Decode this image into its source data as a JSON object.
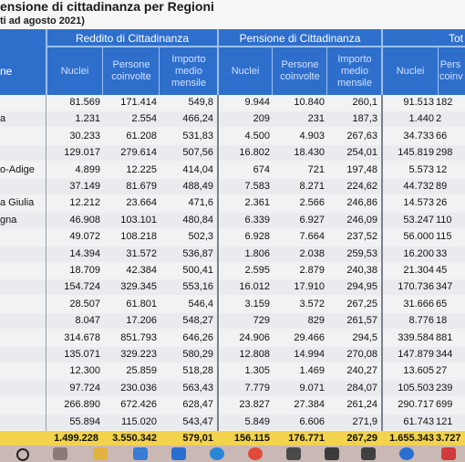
{
  "title": "ensione di cittadinanza per Regioni",
  "subtitle": "ti ad agosto 2021)",
  "row_header": "ne",
  "groups": {
    "reddito": "Reddito di Cittadinanza",
    "pensione": "Pensione di Cittadinanza",
    "totale": "Tot"
  },
  "subheaders": {
    "nuclei": "Nuclei",
    "persone": "Persone coinvolte",
    "importo": "Importo medio mensile",
    "persone_cut": "Pers coinv"
  },
  "rows": [
    {
      "label": "",
      "r": [
        "81.569",
        "171.414",
        "549,8"
      ],
      "p": [
        "9.944",
        "10.840",
        "260,1"
      ],
      "t": [
        "91.513",
        "182"
      ]
    },
    {
      "label": "a",
      "r": [
        "1.231",
        "2.554",
        "466,24"
      ],
      "p": [
        "209",
        "231",
        "187,3"
      ],
      "t": [
        "1.440",
        "2"
      ]
    },
    {
      "label": "",
      "r": [
        "30.233",
        "61.208",
        "531,83"
      ],
      "p": [
        "4.500",
        "4.903",
        "267,63"
      ],
      "t": [
        "34.733",
        "66"
      ]
    },
    {
      "label": "",
      "r": [
        "129.017",
        "279.614",
        "507,56"
      ],
      "p": [
        "16.802",
        "18.430",
        "254,01"
      ],
      "t": [
        "145.819",
        "298"
      ]
    },
    {
      "label": "o-Adige",
      "r": [
        "4.899",
        "12.225",
        "414,04"
      ],
      "p": [
        "674",
        "721",
        "197,48"
      ],
      "t": [
        "5.573",
        "12"
      ]
    },
    {
      "label": "",
      "r": [
        "37.149",
        "81.679",
        "488,49"
      ],
      "p": [
        "7.583",
        "8.271",
        "224,62"
      ],
      "t": [
        "44.732",
        "89"
      ]
    },
    {
      "label": "a Giulia",
      "r": [
        "12.212",
        "23.664",
        "471,6"
      ],
      "p": [
        "2.361",
        "2.566",
        "246,86"
      ],
      "t": [
        "14.573",
        "26"
      ]
    },
    {
      "label": "gna",
      "r": [
        "46.908",
        "103.101",
        "480,84"
      ],
      "p": [
        "6.339",
        "6.927",
        "246,09"
      ],
      "t": [
        "53.247",
        "110"
      ]
    },
    {
      "label": "",
      "r": [
        "49.072",
        "108.218",
        "502,3"
      ],
      "p": [
        "6.928",
        "7.664",
        "237,52"
      ],
      "t": [
        "56.000",
        "115"
      ]
    },
    {
      "label": "",
      "r": [
        "14.394",
        "31.572",
        "536,87"
      ],
      "p": [
        "1.806",
        "2.038",
        "259,53"
      ],
      "t": [
        "16.200",
        "33"
      ]
    },
    {
      "label": "",
      "r": [
        "18.709",
        "42.384",
        "500,41"
      ],
      "p": [
        "2.595",
        "2.879",
        "240,38"
      ],
      "t": [
        "21.304",
        "45"
      ]
    },
    {
      "label": "",
      "r": [
        "154.724",
        "329.345",
        "553,16"
      ],
      "p": [
        "16.012",
        "17.910",
        "294,95"
      ],
      "t": [
        "170.736",
        "347"
      ]
    },
    {
      "label": "",
      "r": [
        "28.507",
        "61.801",
        "546,4"
      ],
      "p": [
        "3.159",
        "3.572",
        "267,25"
      ],
      "t": [
        "31.666",
        "65"
      ]
    },
    {
      "label": "",
      "r": [
        "8.047",
        "17.206",
        "548,27"
      ],
      "p": [
        "729",
        "829",
        "261,57"
      ],
      "t": [
        "8.776",
        "18"
      ]
    },
    {
      "label": "",
      "r": [
        "314.678",
        "851.793",
        "646,26"
      ],
      "p": [
        "24.906",
        "29.466",
        "294,5"
      ],
      "t": [
        "339.584",
        "881"
      ]
    },
    {
      "label": "",
      "r": [
        "135.071",
        "329.223",
        "580,29"
      ],
      "p": [
        "12.808",
        "14.994",
        "270,08"
      ],
      "t": [
        "147.879",
        "344"
      ]
    },
    {
      "label": "",
      "r": [
        "12.300",
        "25.859",
        "518,28"
      ],
      "p": [
        "1.305",
        "1.469",
        "240,27"
      ],
      "t": [
        "13.605",
        "27"
      ]
    },
    {
      "label": "",
      "r": [
        "97.724",
        "230.036",
        "563,43"
      ],
      "p": [
        "7.779",
        "9.071",
        "284,07"
      ],
      "t": [
        "105.503",
        "239"
      ]
    },
    {
      "label": "",
      "r": [
        "266.890",
        "672.426",
        "628,47"
      ],
      "p": [
        "23.827",
        "27.384",
        "261,24"
      ],
      "t": [
        "290.717",
        "699"
      ]
    },
    {
      "label": "",
      "r": [
        "55.894",
        "115.020",
        "543,47"
      ],
      "p": [
        "5.849",
        "6.606",
        "271,9"
      ],
      "t": [
        "61.743",
        "121"
      ]
    }
  ],
  "totals": {
    "r": [
      "1.499.228",
      "3.550.342",
      "579,01"
    ],
    "p": [
      "156.115",
      "176.771",
      "267,29"
    ],
    "t": [
      "1.655.343",
      "3.727"
    ]
  },
  "taskbar_icons": [
    "start-icon",
    "search-icon",
    "task-view-icon",
    "file-explorer-icon",
    "store-icon",
    "mail-icon",
    "edge-icon",
    "chrome-icon",
    "app-icon",
    "app-icon",
    "help-icon",
    "app-icon"
  ]
}
